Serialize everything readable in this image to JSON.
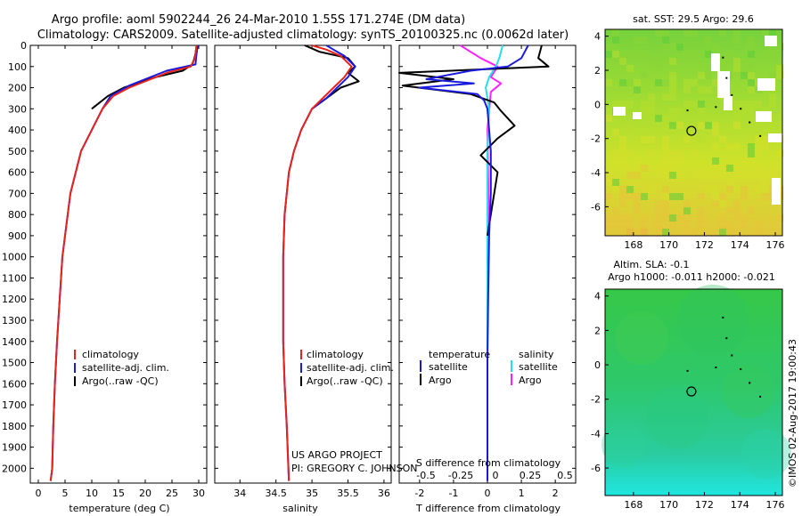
{
  "header": {
    "line1": "Argo profile: aoml 5902244_26 24-Mar-2010 1.55S 171.274E (DM data)",
    "line2": "Climatology: CARS2009. Satellite-adjusted climatology: synTS_20100325.nc (0.0062d later)"
  },
  "credits": {
    "project": "US ARGO PROJECT",
    "pi": "PI: GREGORY C. JOHNSON",
    "imos": "©IMOS 02-Aug-2017 19:00:43"
  },
  "colors": {
    "climatology": "#e8231c",
    "satellite": "#1a1adc",
    "argo": "#000000",
    "sal_satellite": "#22e0e8",
    "sal_argo": "#ff22ff"
  },
  "chart_data": [
    {
      "type": "line",
      "title": "",
      "xlabel": "temperature (deg C)",
      "ylabel": "",
      "xlim": [
        -1.5,
        31.5
      ],
      "ylim": [
        2070,
        0
      ],
      "xticks": [
        0,
        5,
        10,
        15,
        20,
        25,
        30
      ],
      "yticks": [
        0,
        100,
        200,
        300,
        400,
        500,
        600,
        700,
        800,
        900,
        1000,
        1100,
        1200,
        1300,
        1400,
        1500,
        1600,
        1700,
        1800,
        1900,
        2000
      ],
      "legend": [
        "climatology",
        "satellite-adj. clim.",
        "Argo(..raw -QC)"
      ],
      "series": [
        {
          "name": "climatology",
          "color": "#e8231c",
          "x": [
            29.6,
            29.5,
            29.4,
            29.3,
            28.5,
            24,
            17,
            14,
            12,
            10,
            8,
            7,
            6,
            5.5,
            5,
            4.5,
            4,
            3.5,
            3.1,
            2.8,
            2.6,
            2.3
          ],
          "y": [
            0,
            20,
            40,
            60,
            100,
            130,
            200,
            240,
            300,
            400,
            500,
            600,
            700,
            800,
            900,
            1000,
            1200,
            1400,
            1600,
            1800,
            2000,
            2060
          ]
        },
        {
          "name": "satellite-adj. clim.",
          "color": "#1a1adc",
          "x": [
            29.8,
            29.7,
            29.6,
            29.5,
            29.4,
            24,
            17,
            13.5,
            12,
            10,
            8,
            7,
            6,
            5.5,
            5,
            4.5,
            4,
            3.5,
            3.1,
            2.8,
            2.6,
            2.3
          ],
          "y": [
            0,
            20,
            40,
            60,
            90,
            120,
            190,
            240,
            300,
            400,
            500,
            600,
            700,
            800,
            900,
            1000,
            1200,
            1400,
            1600,
            1800,
            2000,
            2060
          ]
        },
        {
          "name": "Argo(..raw -QC)",
          "color": "#000000",
          "x": [
            29.6,
            29.5,
            29.4,
            29.2,
            28.8,
            27,
            22,
            16,
            13,
            10
          ],
          "y": [
            0,
            20,
            40,
            60,
            90,
            120,
            150,
            200,
            240,
            300
          ]
        }
      ]
    },
    {
      "type": "line",
      "xlabel": "salinity",
      "xlim": [
        33.65,
        36.1
      ],
      "ylim": [
        2070,
        0
      ],
      "xticks": [
        34,
        34.5,
        35,
        35.5,
        36
      ],
      "legend": [
        "climatology",
        "satellite-adj. clim.",
        "Argo(..raw -QC)"
      ],
      "series": [
        {
          "name": "climatology",
          "color": "#e8231c",
          "x": [
            35.0,
            35.2,
            35.4,
            35.55,
            35.45,
            35.3,
            35.15,
            35.0,
            34.85,
            34.75,
            34.68,
            34.65,
            34.62,
            34.6,
            34.6,
            34.6,
            34.62,
            34.65,
            34.68
          ],
          "y": [
            0,
            20,
            50,
            100,
            150,
            200,
            250,
            300,
            400,
            500,
            600,
            700,
            800,
            1000,
            1200,
            1400,
            1600,
            1800,
            2060
          ]
        },
        {
          "name": "satellite-adj. clim.",
          "color": "#1a1adc",
          "x": [
            35.2,
            35.3,
            35.45,
            35.6,
            35.5,
            35.35,
            35.2,
            35.0,
            34.85,
            34.75,
            34.68,
            34.65,
            34.62,
            34.6,
            34.6,
            34.6,
            34.62,
            34.65,
            34.68
          ],
          "y": [
            0,
            20,
            50,
            100,
            150,
            200,
            250,
            300,
            400,
            500,
            600,
            700,
            800,
            1000,
            1200,
            1400,
            1600,
            1800,
            2060
          ]
        },
        {
          "name": "Argo(..raw -QC)",
          "color": "#000000",
          "x": [
            34.9,
            35.1,
            35.5,
            35.6,
            35.5,
            35.65,
            35.4,
            35.2,
            35.0
          ],
          "y": [
            0,
            30,
            60,
            100,
            130,
            170,
            200,
            250,
            300
          ]
        }
      ]
    },
    {
      "type": "line",
      "xlabel_top": "S difference from climatology",
      "xlabel": "T difference from climatology",
      "xlim": [
        -2.6,
        2.6
      ],
      "ylim": [
        2070,
        0
      ],
      "xticks": [
        -2,
        -1,
        0,
        1,
        2
      ],
      "xticks_s": [
        -0.5,
        -0.25,
        0,
        0.25,
        0.5
      ],
      "legend_headers": [
        "temperature",
        "salinity"
      ],
      "legend": [
        "satellite",
        "Argo",
        "satellite",
        "Argo"
      ],
      "series": [
        {
          "name": "temperature satellite",
          "color": "#1a1adc",
          "x": [
            1.2,
            1.0,
            0.6,
            -0.5,
            -1.8,
            -0.4,
            -2.0,
            -0.3,
            -0.1,
            0.0,
            0.1,
            0.1,
            0.05,
            0.02,
            0.0,
            0.0,
            0.0
          ],
          "y": [
            0,
            60,
            100,
            120,
            160,
            180,
            200,
            230,
            260,
            300,
            500,
            700,
            900,
            1200,
            1500,
            1800,
            2060
          ]
        },
        {
          "name": "temperature Argo",
          "color": "#000000",
          "x": [
            1.6,
            1.5,
            1.8,
            -2.6,
            -1.0,
            -2.5,
            -0.5,
            0.2,
            0.4,
            0.8,
            0.3,
            -0.2,
            0.3,
            0.1,
            0.0
          ],
          "y": [
            0,
            60,
            100,
            130,
            160,
            190,
            230,
            270,
            310,
            380,
            440,
            520,
            600,
            800,
            900
          ]
        },
        {
          "name": "salinity satellite",
          "color": "#22e0e8",
          "x": [
            0.45,
            0.35,
            0.25,
            0.05,
            -0.05,
            0.05,
            0.0,
            0.0,
            0.0,
            0.0
          ],
          "y": [
            0,
            60,
            100,
            150,
            200,
            300,
            500,
            900,
            1500,
            2060
          ]
        },
        {
          "name": "salinity Argo",
          "color": "#ff22ff",
          "x": [
            -0.8,
            -0.2,
            0.3,
            0.1,
            0.4,
            0.1,
            0.0,
            0.05
          ],
          "y": [
            0,
            60,
            100,
            150,
            180,
            220,
            400,
            900
          ]
        }
      ]
    },
    {
      "type": "heatmap",
      "title": "sat. SST: 29.5 Argo: 29.6",
      "xticks": [
        168,
        170,
        172,
        174,
        176
      ],
      "yticks": [
        4,
        2,
        0,
        -2,
        -4,
        -6
      ],
      "xlim": [
        166.4,
        176.4
      ],
      "ylim": [
        -7.7,
        4.4
      ],
      "marker": [
        171.27,
        -1.55
      ]
    },
    {
      "type": "heatmap",
      "title": "Altim. SLA: -0.1",
      "subtitle": "Argo h1000: -0.011 h2000: -0.021",
      "xticks": [
        168,
        170,
        172,
        174,
        176
      ],
      "yticks": [
        4,
        2,
        0,
        -2,
        -4,
        -6
      ],
      "xlim": [
        166.4,
        176.4
      ],
      "ylim": [
        -7.6,
        4.4
      ],
      "marker": [
        171.27,
        -1.55
      ]
    }
  ]
}
